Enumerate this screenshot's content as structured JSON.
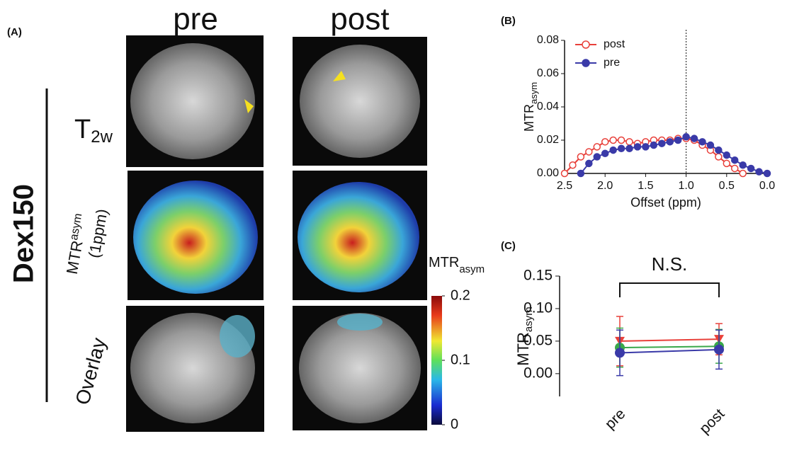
{
  "panel_a": {
    "label": "(A)",
    "columns": [
      "pre",
      "post"
    ],
    "group": "Dex150",
    "rows": [
      {
        "main": "T",
        "sub": "2w"
      },
      {
        "main": "MTR",
        "sub": "asym",
        "extra": "(1ppm)"
      },
      {
        "main": "Overlay"
      }
    ],
    "colorbar": {
      "main": "MTR",
      "sub": "asym",
      "ticks": [
        0,
        0.1,
        0.2
      ],
      "lim": [
        0,
        0.2
      ]
    }
  },
  "chart_data": [
    {
      "type": "line",
      "panel": "(B)",
      "y_label": "MTR",
      "y_label_sub": "asym",
      "x_label": "Offset (ppm)",
      "xlim": [
        2.5,
        0.0
      ],
      "ylim": [
        0,
        0.08
      ],
      "xticks": [
        {
          "value": 2.5,
          "label": "2.5"
        },
        {
          "value": 2,
          "label": "2.0"
        },
        {
          "value": 1.5,
          "label": "1.5"
        },
        {
          "value": 1,
          "label": "1.0"
        },
        {
          "value": 0.5,
          "label": "0.5"
        },
        {
          "value": 0,
          "label": "0.0"
        }
      ],
      "yticks": [
        {
          "value": 0,
          "label": "0.00"
        },
        {
          "value": 0.02,
          "label": "0.02"
        },
        {
          "value": 0.04,
          "label": "0.04"
        },
        {
          "value": 0.06,
          "label": "0.06"
        },
        {
          "value": 0.08,
          "label": "0.08"
        }
      ],
      "vline": 1,
      "legend": "upper left",
      "series": [
        {
          "name": "post",
          "color": "#e8403a",
          "marker": "open",
          "x": [
            2.5,
            2.4,
            2.3,
            2.2,
            2.1,
            2.0,
            1.9,
            1.8,
            1.7,
            1.6,
            1.5,
            1.4,
            1.3,
            1.2,
            1.1,
            1.0,
            0.9,
            0.8,
            0.7,
            0.6,
            0.5,
            0.4,
            0.3
          ],
          "values": [
            0.0,
            0.005,
            0.01,
            0.013,
            0.016,
            0.019,
            0.02,
            0.02,
            0.019,
            0.018,
            0.019,
            0.02,
            0.02,
            0.02,
            0.021,
            0.021,
            0.02,
            0.017,
            0.014,
            0.01,
            0.006,
            0.003,
            0.0
          ]
        },
        {
          "name": "pre",
          "color": "#3a3aa8",
          "marker": "filled",
          "x": [
            2.3,
            2.2,
            2.1,
            2.0,
            1.9,
            1.8,
            1.7,
            1.6,
            1.5,
            1.4,
            1.3,
            1.2,
            1.1,
            1.0,
            0.9,
            0.8,
            0.7,
            0.6,
            0.5,
            0.4,
            0.3,
            0.2,
            0.1,
            0.0
          ],
          "values": [
            0.0,
            0.006,
            0.01,
            0.012,
            0.014,
            0.015,
            0.015,
            0.016,
            0.016,
            0.017,
            0.018,
            0.019,
            0.02,
            0.022,
            0.021,
            0.019,
            0.017,
            0.014,
            0.011,
            0.008,
            0.005,
            0.003,
            0.001,
            0.0
          ]
        }
      ]
    },
    {
      "type": "errorline",
      "panel": "(C)",
      "y_label": "MTR",
      "y_label_sub": "asym",
      "annotation": "N.S.",
      "categories": [
        "pre",
        "post"
      ],
      "ylim": [
        -0.035,
        0.15
      ],
      "yticks": [
        {
          "value": 0,
          "label": "0.00"
        },
        {
          "value": 0.05,
          "label": "0.05"
        },
        {
          "value": 0.1,
          "label": "0.10"
        },
        {
          "value": 0.15,
          "label": "0.15"
        }
      ],
      "series": [
        {
          "color": "#e8403a",
          "marker": "triangle",
          "values": [
            0.05,
            0.053
          ],
          "errors": [
            0.038,
            0.024
          ]
        },
        {
          "color": "#3aa84a",
          "marker": "circle",
          "values": [
            0.04,
            0.042
          ],
          "errors": [
            0.03,
            0.026
          ]
        },
        {
          "color": "#3a3aa8",
          "marker": "circle",
          "values": [
            0.032,
            0.037
          ],
          "errors": [
            0.035,
            0.03
          ]
        }
      ]
    }
  ]
}
